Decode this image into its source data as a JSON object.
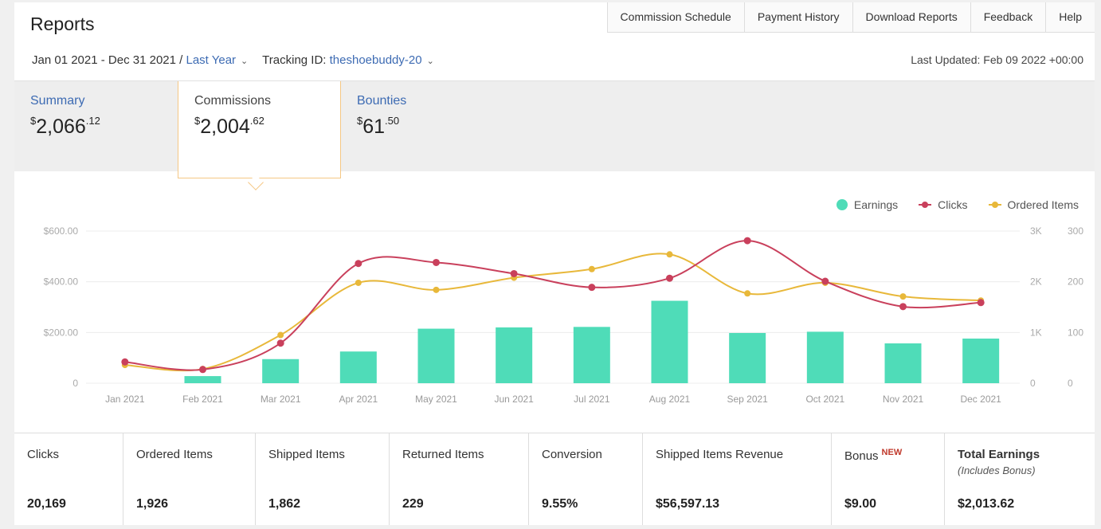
{
  "header": {
    "title": "Reports"
  },
  "nav": [
    "Commission Schedule",
    "Payment History",
    "Download Reports",
    "Feedback",
    "Help"
  ],
  "filters": {
    "date_range": "Jan 01 2021 - Dec 31 2021 /",
    "period": "Last Year",
    "tracking_label": "Tracking ID:",
    "tracking_id": "theshoebuddy-20"
  },
  "last_updated": "Last Updated: Feb 09 2022 +00:00",
  "tabs": [
    {
      "label": "Summary",
      "dollar": "$",
      "whole": "2,066",
      "cents": ".12"
    },
    {
      "label": "Commissions",
      "dollar": "$",
      "whole": "2,004",
      "cents": ".62"
    },
    {
      "label": "Bounties",
      "dollar": "$",
      "whole": "61",
      "cents": ".50"
    }
  ],
  "legend": {
    "earnings": "Earnings",
    "clicks": "Clicks",
    "ordered": "Ordered Items"
  },
  "chart_data": {
    "type": "bar",
    "categories": [
      "Jan 2021",
      "Feb 2021",
      "Mar 2021",
      "Apr 2021",
      "May 2021",
      "Jun 2021",
      "Jul 2021",
      "Aug 2021",
      "Sep 2021",
      "Oct 2021",
      "Nov 2021",
      "Dec 2021"
    ],
    "series": [
      {
        "name": "Earnings",
        "type": "bar",
        "axis": "left",
        "values": [
          0,
          28,
          95,
          125,
          215,
          220,
          222,
          325,
          198,
          203,
          157,
          176
        ]
      },
      {
        "name": "Clicks",
        "type": "line",
        "axis": "right-1",
        "values": [
          420,
          270,
          790,
          2360,
          2380,
          2160,
          1890,
          2070,
          2810,
          2010,
          1510,
          1590
        ]
      },
      {
        "name": "Ordered Items",
        "type": "line",
        "axis": "right-2",
        "values": [
          36,
          28,
          95,
          198,
          184,
          208,
          225,
          254,
          177,
          198,
          171,
          163
        ]
      }
    ],
    "y_left": {
      "ticks": [
        "0",
        "$200.00",
        "$400.00",
        "$600.00"
      ],
      "range": [
        0,
        600
      ]
    },
    "y_right_1": {
      "ticks": [
        "0",
        "1K",
        "2K",
        "3K"
      ],
      "range": [
        0,
        3000
      ]
    },
    "y_right_2": {
      "ticks": [
        "0",
        "100",
        "200",
        "300"
      ],
      "range": [
        0,
        300
      ]
    },
    "grid": true,
    "legend_position": "top-right",
    "colors": {
      "earnings": "#4fdcb8",
      "clicks": "#c9405c",
      "ordered": "#e8b83a"
    }
  },
  "stats": [
    {
      "label": "Clicks",
      "value": "20,169"
    },
    {
      "label": "Ordered Items",
      "value": "1,926"
    },
    {
      "label": "Shipped Items",
      "value": "1,862"
    },
    {
      "label": "Returned Items",
      "value": "229"
    },
    {
      "label": "Conversion",
      "value": "9.55%"
    },
    {
      "label": "Shipped Items Revenue",
      "value": "$56,597.13"
    },
    {
      "label": "Bonus",
      "badge": "NEW",
      "value": "$9.00"
    },
    {
      "label": "Total Earnings",
      "sub": "(Includes Bonus)",
      "value": "$2,013.62"
    }
  ]
}
